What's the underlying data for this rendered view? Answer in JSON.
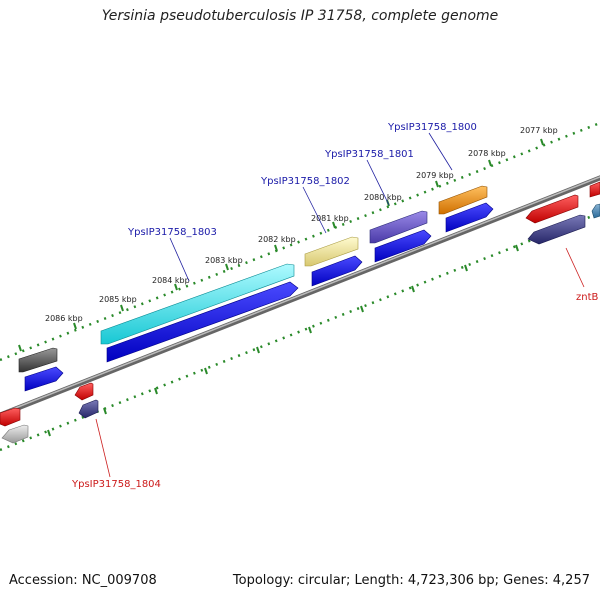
{
  "title": "Yersinia pseudotuberculosis IP 31758, complete genome",
  "footer": {
    "accession": "Accession: NC_009708",
    "topology": "Topology: circular; Length: 4,723,306 bp; Genes: 4,257"
  },
  "ticks": [
    "2077 kbp",
    "2078 kbp",
    "2079 kbp",
    "2080 kbp",
    "2081 kbp",
    "2082 kbp",
    "2083 kbp",
    "2084 kbp",
    "2085 kbp",
    "2086 kbp"
  ],
  "gene_labels_top": [
    "YpsIP31758_1800",
    "YpsIP31758_1801",
    "YpsIP31758_1802",
    "YpsIP31758_1803"
  ],
  "gene_labels_bottom": [
    "YpsIP31758_1804",
    "zntB"
  ],
  "colors": {
    "strand_forward": "#1010e0",
    "gene_1803": "#22e6ee",
    "gene_1802": "#f0e08a",
    "gene_1801": "#6a5acd",
    "gene_1800": "#f08c00",
    "gene_gray": "#555555",
    "gene_red": "#e01010",
    "gene_darkslate": "#3b3b8a",
    "gene_lightgray": "#bbbbbb",
    "backbone": "#888888",
    "dots": "#2a8a2a"
  }
}
